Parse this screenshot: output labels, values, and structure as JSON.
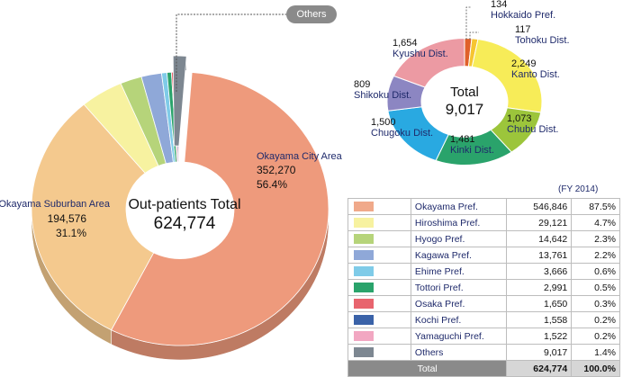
{
  "chart_data": [
    {
      "type": "pie",
      "title": "Out-patients Total",
      "total_value": "624,774",
      "categories": [
        "Okayama City Area",
        "Okayama Suburban Area",
        "Hiroshima Pref.",
        "Hyogo Pref.",
        "Kagawa Pref.",
        "Ehime Pref.",
        "Tottori Pref.",
        "Osaka Pref.",
        "Kochi Pref.",
        "Yamaguchi Pref.",
        "Others"
      ],
      "values": [
        352270,
        194576,
        29121,
        14642,
        13761,
        3666,
        2991,
        1650,
        1558,
        1522,
        9017
      ],
      "colors": [
        "#ee9a7c",
        "#f4c98e",
        "#f7f2a0",
        "#b6d47a",
        "#8fa8d8",
        "#7fcbe8",
        "#2aa36b",
        "#e8646e",
        "#3a62a8",
        "#f2a7c2",
        "#7d8791"
      ],
      "annotations": [
        {
          "name": "Okayama City Area",
          "value": "352,270",
          "percent": "56.4%"
        },
        {
          "name": "Okayama Suburban Area",
          "value": "194,576",
          "percent": "31.1%"
        }
      ],
      "callout": "Others"
    },
    {
      "type": "pie",
      "title": "Total",
      "total_value": "9,017",
      "categories": [
        "Hokkaido Pref.",
        "Tohoku Dist.",
        "Kanto Dist.",
        "Chubu Dist.",
        "Kinki Dist.",
        "Chugoku Dist.",
        "Shikoku Dist.",
        "Kyushu Dist."
      ],
      "values": [
        134,
        117,
        2249,
        1073,
        1481,
        1500,
        809,
        1654
      ],
      "value_labels": [
        "134",
        "117",
        "2,249",
        "1,073",
        "1,481",
        "1,500",
        "809",
        "1,654"
      ],
      "colors": [
        "#e0602a",
        "#f6c531",
        "#f7ec58",
        "#9cc53b",
        "#2aa36b",
        "#29a9e1",
        "#8c86c2",
        "#ec9aa3"
      ]
    },
    {
      "type": "table",
      "note": "(FY 2014)",
      "rows": [
        {
          "name": "Okayama Pref.",
          "value": "546,846",
          "percent": "87.5%",
          "color": "#f0a98a"
        },
        {
          "name": "Hiroshima Pref.",
          "value": "29,121",
          "percent": "4.7%",
          "color": "#f7f2a0"
        },
        {
          "name": "Hyogo Pref.",
          "value": "14,642",
          "percent": "2.3%",
          "color": "#b6d47a"
        },
        {
          "name": "Kagawa Pref.",
          "value": "13,761",
          "percent": "2.2%",
          "color": "#8fa8d8"
        },
        {
          "name": "Ehime Pref.",
          "value": "3,666",
          "percent": "0.6%",
          "color": "#7fcbe8"
        },
        {
          "name": "Tottori Pref.",
          "value": "2,991",
          "percent": "0.5%",
          "color": "#2aa36b"
        },
        {
          "name": "Osaka Pref.",
          "value": "1,650",
          "percent": "0.3%",
          "color": "#e8646e"
        },
        {
          "name": "Kochi Pref.",
          "value": "1,558",
          "percent": "0.2%",
          "color": "#3a62a8"
        },
        {
          "name": "Yamaguchi Pref.",
          "value": "1,522",
          "percent": "0.2%",
          "color": "#f2a7c2"
        },
        {
          "name": "Others",
          "value": "9,017",
          "percent": "1.4%",
          "color": "#7d8791"
        }
      ],
      "total": {
        "label": "Total",
        "value": "624,774",
        "percent": "100.0%"
      }
    }
  ]
}
